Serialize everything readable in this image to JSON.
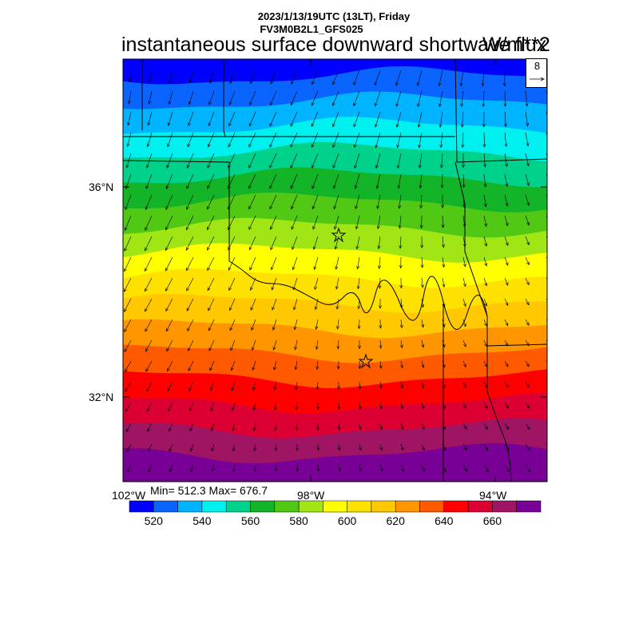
{
  "header": {
    "line1": "2023/1/13/19UTC (13LT), Friday",
    "line2": "FV3M0B2L1_GFS025",
    "title": "instantaneous surface downward shortwave flux",
    "units": "W/m**2"
  },
  "reference_vector": {
    "value": "8"
  },
  "axes": {
    "lat_labels": [
      "36°N",
      "32°N"
    ],
    "lon_labels": [
      "102°W",
      "98°W",
      "94°W"
    ]
  },
  "stats": {
    "text": "Min= 512.3 Max= 676.7",
    "min": 512.3,
    "max": 676.7
  },
  "colorbar": {
    "labels": [
      "520",
      "540",
      "560",
      "580",
      "600",
      "620",
      "640",
      "660"
    ],
    "levels": [
      520,
      530,
      540,
      550,
      560,
      570,
      580,
      590,
      600,
      610,
      620,
      630,
      640,
      650,
      660,
      670
    ],
    "colors": [
      "#0000ff",
      "#0a64ff",
      "#00b4ff",
      "#00f0f0",
      "#00d28c",
      "#14b428",
      "#50c814",
      "#a0e614",
      "#ffff00",
      "#ffe100",
      "#ffc800",
      "#ff9600",
      "#ff5a00",
      "#ff0000",
      "#dc0032",
      "#a01464",
      "#780096"
    ]
  },
  "stations": [
    "star",
    "star"
  ]
}
